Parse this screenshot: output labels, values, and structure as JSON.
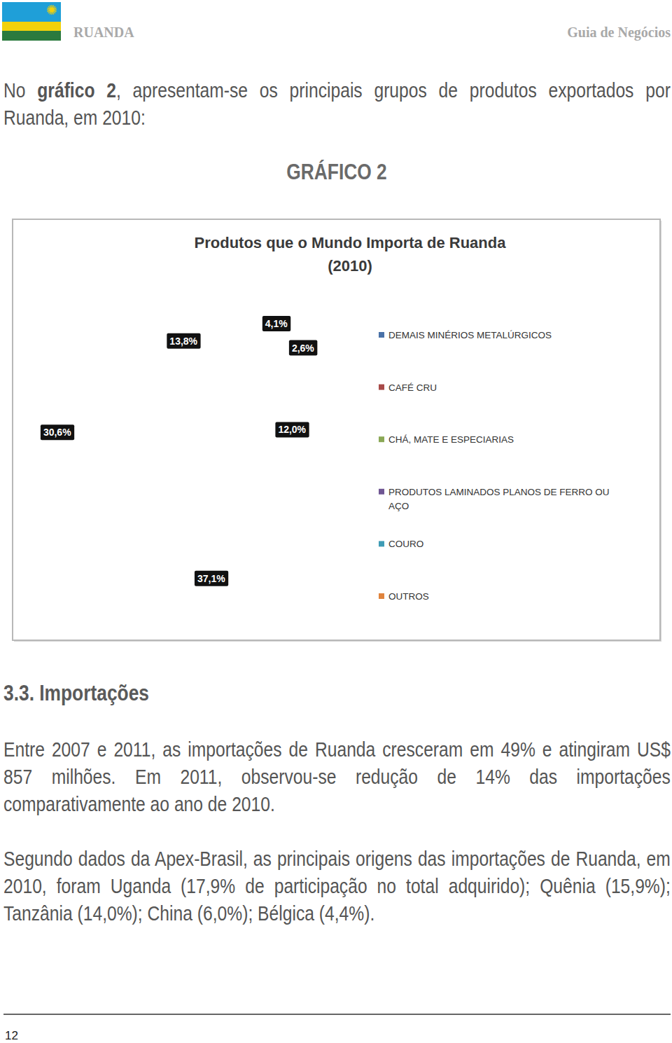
{
  "header": {
    "country": "RUANDA",
    "guide": "Guia de Negócios"
  },
  "intro": {
    "before": "No ",
    "bold": "gráfico 2",
    "after": ", apresentam-se os principais grupos de produtos exportados por Ruanda, em 2010:"
  },
  "figure_label": "GRÁFICO 2",
  "chart_data": {
    "type": "pie",
    "title": [
      "Produtos que o Mundo Importa de Ruanda",
      "(2010)"
    ],
    "categories": [
      "DEMAIS MINÉRIOS METALÚRGICOS",
      "CAFÉ CRU",
      "CHÁ, MATE E ESPECIARIAS",
      "PRODUTOS LAMINADOS PLANOS DE FERRO OU AÇO",
      "COURO",
      "OUTROS"
    ],
    "values": [
      37.1,
      30.6,
      13.8,
      4.1,
      2.6,
      12.0
    ],
    "value_labels": [
      "37,1%",
      "30,6%",
      "13,8%",
      "4,1%",
      "2,6%",
      "12,0%"
    ],
    "colors": [
      "#4a72a8",
      "#a84a48",
      "#8aa855",
      "#6f5693",
      "#3f9cb5",
      "#e0843d"
    ],
    "data_labels": true,
    "legend": "right"
  },
  "section": {
    "heading": "3.3. Importações",
    "paragraphs": [
      "Entre 2007 e 2011, as importações de Ruanda cresceram em 49% e atingiram US$ 857 milhões. Em 2011, observou-se redução de 14% das importações comparativamente ao ano de 2010.",
      "Segundo dados da Apex-Brasil, as principais origens das importações de Ruanda, em 2010, foram Uganda (17,9% de participação no total adquirido); Quênia (15,9%); Tanzânia (14,0%); China (6,0%); Bélgica (4,4%)."
    ]
  },
  "footer": {
    "page": "12"
  }
}
